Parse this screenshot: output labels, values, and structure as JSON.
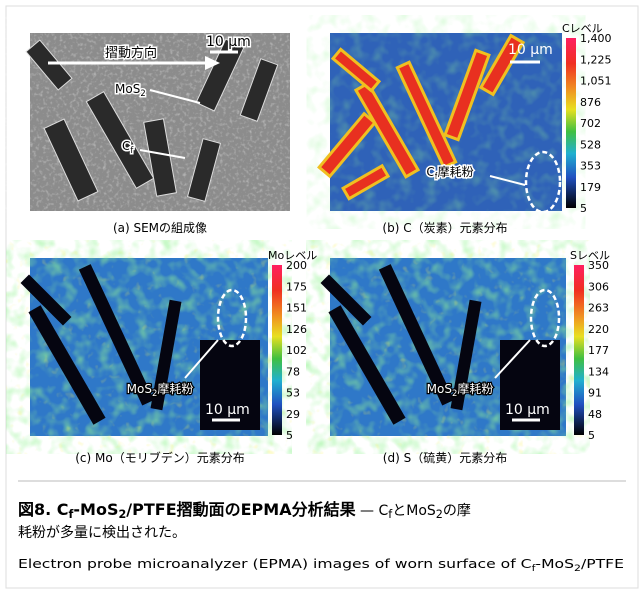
{
  "panels": [
    {
      "caption": "(a) SEMの組成像",
      "scale_bar": "10 μm",
      "direction": "摺動方向",
      "labels": [
        [
          {
            "text": "MoS"
          },
          {
            "sub": "2"
          }
        ],
        [
          {
            "text": "C"
          },
          {
            "sub": "f"
          }
        ]
      ]
    },
    {
      "caption": "(b) C（炭素）元素分布",
      "scale_bar": "10 μm",
      "labels": [
        [
          {
            "text": "C"
          },
          {
            "sub": "f"
          },
          {
            "text": "摩耗粉"
          }
        ]
      ],
      "colorbar": {
        "title": "Cレベル",
        "ticks": [
          {
            "value": 1400,
            "label": "1,400"
          },
          {
            "value": 1225,
            "label": "1,225"
          },
          {
            "value": 1051,
            "label": "1,051"
          },
          876,
          702,
          528,
          353,
          179,
          5
        ]
      }
    },
    {
      "caption": "(c) Mo（モリブデン）元素分布",
      "scale_bar": "10 μm",
      "labels": [
        [
          {
            "text": "MoS"
          },
          {
            "sub": "2"
          },
          {
            "text": "摩耗粉"
          }
        ]
      ],
      "colorbar": {
        "title": "Moレベル",
        "ticks": [
          200,
          175,
          151,
          126,
          102,
          78,
          53,
          29,
          5
        ]
      }
    },
    {
      "caption": "(d) S（硫黄）元素分布",
      "scale_bar": "10 μm",
      "labels": [
        [
          {
            "text": "MoS"
          },
          {
            "sub": "2"
          },
          {
            "text": "摩耗粉"
          }
        ]
      ],
      "colorbar": {
        "title": "Sレベル",
        "ticks": [
          350,
          306,
          263,
          220,
          177,
          134,
          91,
          48,
          5
        ]
      }
    }
  ],
  "caption": {
    "title": [
      {
        "text": "図8. C"
      },
      {
        "sub": "f"
      },
      {
        "text": "-MoS"
      },
      {
        "sub": "2"
      },
      {
        "text": "/PTFE摺動面のEPMA分析結果"
      }
    ],
    "body_line1": [
      {
        "text": " — C"
      },
      {
        "sub": "f"
      },
      {
        "text": "とMoS"
      },
      {
        "sub": "2"
      },
      {
        "text": "の摩"
      }
    ],
    "body_line2": "耗粉が多量に検出された。",
    "english": [
      {
        "text": "Electron probe microanalyzer (EPMA) images of worn surface of C"
      },
      {
        "sub": "f"
      },
      {
        "text": "-MoS"
      },
      {
        "sub": "2"
      },
      {
        "text": "/PTFE"
      }
    ]
  }
}
